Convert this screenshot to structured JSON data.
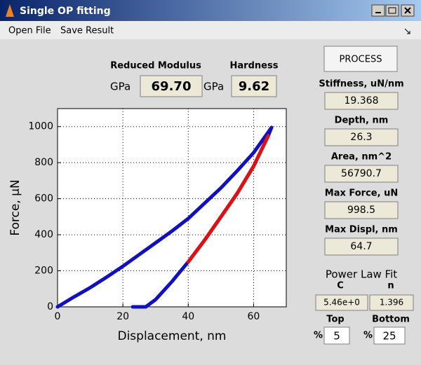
{
  "window": {
    "title": "Single OP fitting"
  },
  "menu": [
    "Open File",
    "Save Result"
  ],
  "results": {
    "reduced_modulus": {
      "label": "Reduced Modulus",
      "unit": "GPa",
      "value": "69.70"
    },
    "hardness": {
      "label": "Hardness",
      "unit": "GPa",
      "value": "9.62"
    }
  },
  "button": "PROCESS",
  "fields": [
    {
      "label": "Stiffness, uN/nm",
      "value": "19.368"
    },
    {
      "label": "Depth, nm",
      "value": "26.3"
    },
    {
      "label": "Area, nm^2",
      "value": "56790.7"
    },
    {
      "label": "Max Force, uN",
      "value": "998.5"
    },
    {
      "label": "Max Displ, nm",
      "value": "64.7"
    }
  ],
  "power_law": {
    "title": "Power Law Fit",
    "c_label": "C",
    "c_value": "5.46e+0",
    "n_label": "n",
    "n_value": "1.396"
  },
  "fit_range": {
    "top": {
      "label": "Top",
      "unit": "%",
      "value": "5"
    },
    "bottom": {
      "label": "Bottom",
      "unit": "%",
      "value": "25"
    }
  },
  "chart_data": {
    "type": "line",
    "xlabel": "Displacement, nm",
    "ylabel": "Force, μN",
    "xlim": [
      0,
      70
    ],
    "ylim": [
      0,
      1100
    ],
    "xticks": [
      0,
      20,
      40,
      60
    ],
    "yticks": [
      0,
      200,
      400,
      600,
      800,
      1000
    ],
    "grid": true,
    "series": [
      {
        "color": "#1010c0",
        "x": [
          0,
          5,
          10,
          15,
          20,
          25,
          30,
          35,
          40,
          45,
          50,
          55,
          60,
          65.5
        ],
        "values": [
          0,
          55,
          107,
          165,
          225,
          290,
          355,
          420,
          490,
          575,
          660,
          755,
          855,
          995
        ]
      },
      {
        "color": "#1010c0",
        "x": [
          65.5,
          64.5,
          60,
          55,
          50,
          45,
          40,
          35,
          30,
          27,
          23
        ],
        "values": [
          995,
          950,
          780,
          630,
          500,
          370,
          250,
          140,
          40,
          0,
          0
        ]
      },
      {
        "color": "#e01010",
        "x": [
          64.5,
          60,
          55,
          50,
          45,
          40
        ],
        "values": [
          950,
          780,
          630,
          500,
          370,
          250
        ]
      }
    ]
  }
}
